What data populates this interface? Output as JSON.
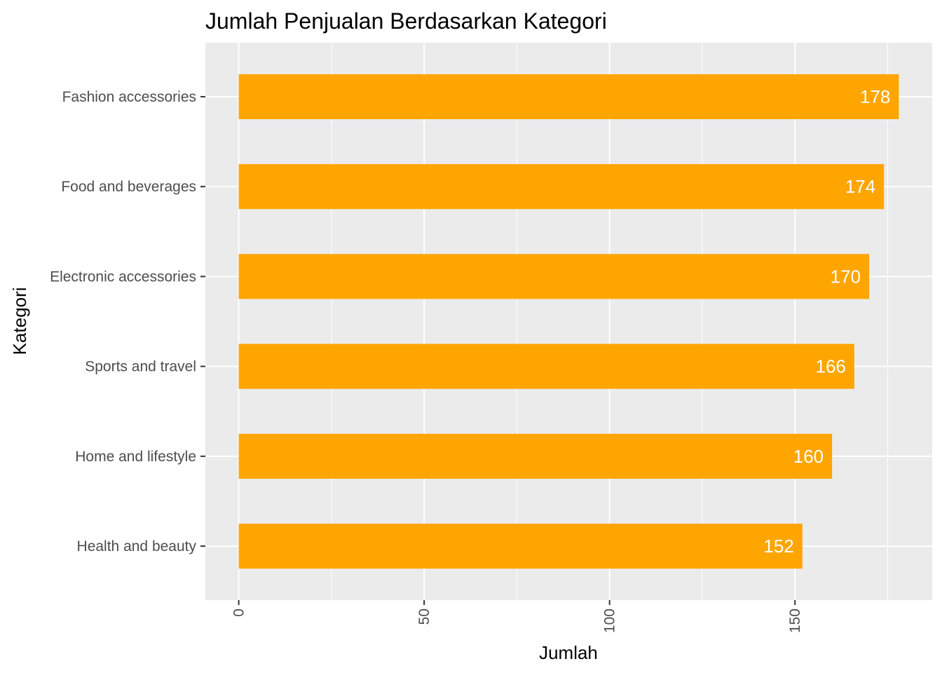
{
  "chart_data": {
    "type": "bar",
    "orientation": "horizontal",
    "title": "Jumlah Penjualan Berdasarkan Kategori",
    "xlabel": "Jumlah",
    "ylabel": "Kategori",
    "categories": [
      "Fashion accessories",
      "Food and beverages",
      "Electronic accessories",
      "Sports and travel",
      "Home and lifestyle",
      "Health and beauty"
    ],
    "values": [
      178,
      174,
      170,
      166,
      160,
      152
    ],
    "data_labels": [
      "178",
      "174",
      "170",
      "166",
      "160",
      "152"
    ],
    "xlim": [
      -9,
      187
    ],
    "x_ticks": [
      0,
      50,
      100,
      150
    ],
    "x_tick_labels": [
      "0",
      "50",
      "100",
      "150"
    ],
    "x_minor_ticks": [
      25,
      75,
      125,
      175
    ],
    "grid": true,
    "legend": "none",
    "colors": {
      "bar": "#FFA500",
      "panel_background": "#EBEBEB",
      "grid": "#FFFFFF",
      "tick_text": "#4D4D4D"
    }
  }
}
